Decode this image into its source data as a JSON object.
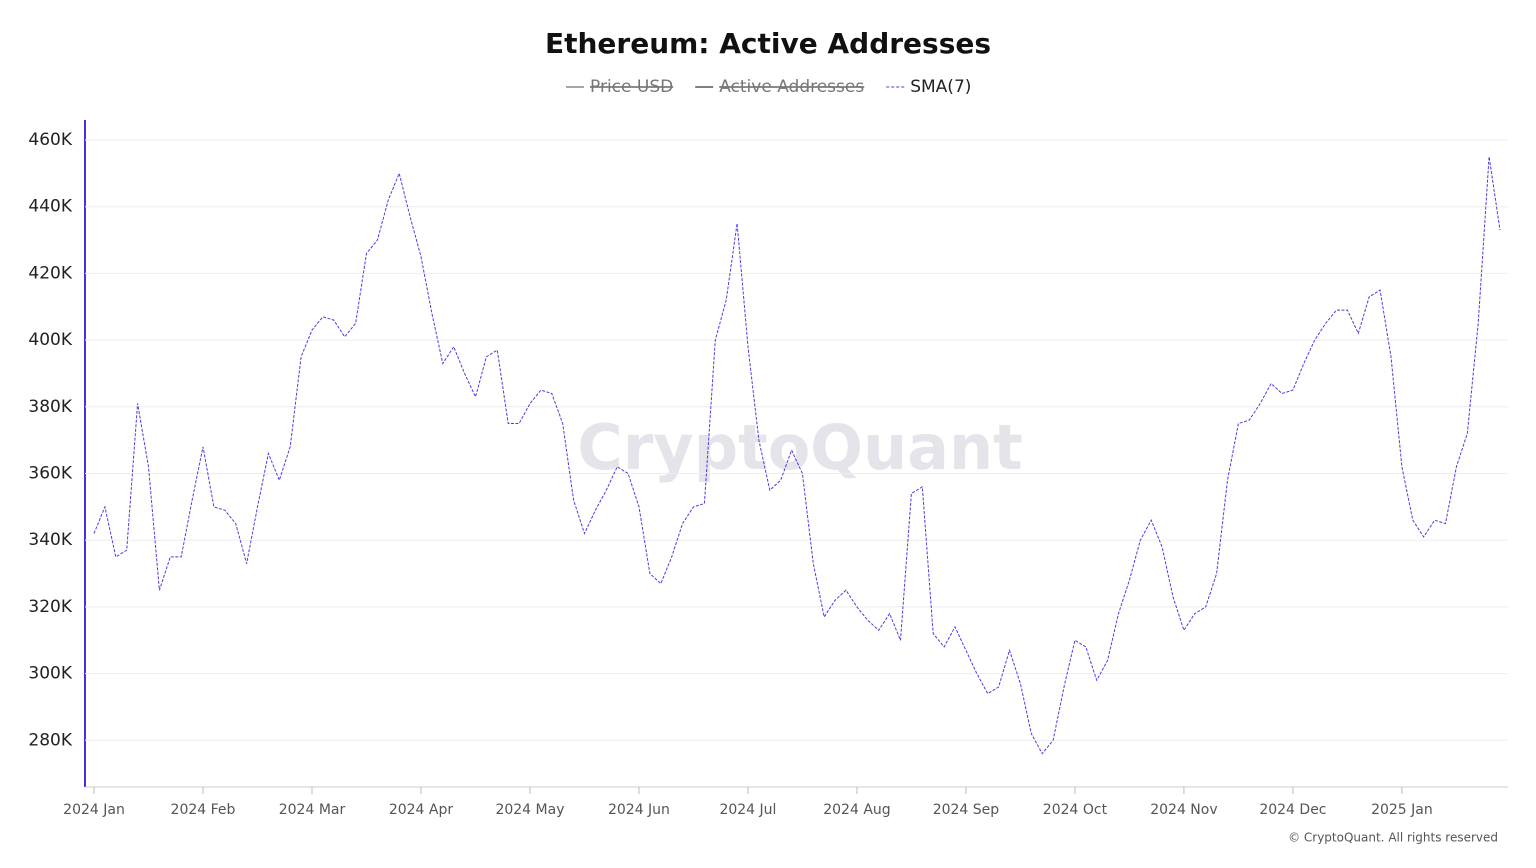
{
  "chart_data": {
    "type": "line",
    "title": "Ethereum: Active Addresses",
    "watermark": "CryptoQuant",
    "credit": "© CryptoQuant. All rights reserved",
    "legend": [
      {
        "name": "Price USD",
        "color": "#888888",
        "hidden": true,
        "style": "solid"
      },
      {
        "name": "Active Addresses",
        "color": "#555555",
        "hidden": true,
        "style": "solid"
      },
      {
        "name": "SMA(7)",
        "color": "#4b3ee0",
        "hidden": false,
        "style": "dashed"
      }
    ],
    "categories": [
      "2024 Jan",
      null,
      null,
      null,
      null,
      null,
      null,
      null,
      null,
      null,
      "2024 Feb",
      null,
      null,
      null,
      null,
      null,
      null,
      null,
      null,
      null,
      "2024 Mar",
      null,
      null,
      null,
      null,
      null,
      null,
      null,
      null,
      null,
      "2024 Apr",
      null,
      null,
      null,
      null,
      null,
      null,
      null,
      null,
      null,
      "2024 May",
      null,
      null,
      null,
      null,
      null,
      null,
      null,
      null,
      null,
      "2024 Jun",
      null,
      null,
      null,
      null,
      null,
      null,
      null,
      null,
      null,
      "2024 Jul",
      null,
      null,
      null,
      null,
      null,
      null,
      null,
      null,
      null,
      "2024 Aug",
      null,
      null,
      null,
      null,
      null,
      null,
      null,
      null,
      null,
      "2024 Sep",
      null,
      null,
      null,
      null,
      null,
      null,
      null,
      null,
      null,
      "2024 Oct",
      null,
      null,
      null,
      null,
      null,
      null,
      null,
      null,
      null,
      "2024 Nov",
      null,
      null,
      null,
      null,
      null,
      null,
      null,
      null,
      null,
      "2024 Dec",
      null,
      null,
      null,
      null,
      null,
      null,
      null,
      null,
      null,
      "2025 Jan",
      null,
      null,
      null,
      null,
      null,
      null,
      null,
      null,
      null
    ],
    "series": [
      {
        "name": "SMA(7)",
        "color": "#4b3ee0",
        "values": [
          342000,
          350000,
          335000,
          337000,
          381000,
          362000,
          325000,
          335000,
          335000,
          352000,
          368000,
          350000,
          349000,
          345000,
          333000,
          350000,
          366000,
          358000,
          368000,
          395000,
          403000,
          407000,
          406000,
          401000,
          405000,
          426000,
          430000,
          442000,
          450000,
          437000,
          425000,
          408000,
          393000,
          398000,
          390000,
          383000,
          395000,
          397000,
          375000,
          375000,
          381000,
          385000,
          384000,
          375000,
          352000,
          342000,
          349000,
          355000,
          362000,
          360000,
          350000,
          330000,
          327000,
          335000,
          345000,
          350000,
          351000,
          400000,
          412000,
          435000,
          398000,
          370000,
          355000,
          358000,
          367000,
          360000,
          333000,
          317000,
          322000,
          325000,
          320000,
          316000,
          313000,
          318000,
          310000,
          354000,
          356000,
          312000,
          308000,
          314000,
          307000,
          300000,
          294000,
          296000,
          307000,
          297000,
          282000,
          276000,
          280000,
          296000,
          310000,
          308000,
          298000,
          304000,
          318000,
          328000,
          340000,
          346000,
          338000,
          323000,
          313000,
          318000,
          320000,
          330000,
          358000,
          375000,
          376000,
          381000,
          387000,
          384000,
          385000,
          393000,
          400000,
          405000,
          409000,
          409000,
          402000,
          413000,
          415000,
          395000,
          362000,
          346000,
          341000,
          346000,
          345000,
          362000,
          372000,
          405000,
          455000,
          433000
        ]
      }
    ],
    "ylim": [
      266000,
      466000
    ],
    "yticks": [
      {
        "value": 280000,
        "label": "280K"
      },
      {
        "value": 300000,
        "label": "300K"
      },
      {
        "value": 320000,
        "label": "320K"
      },
      {
        "value": 340000,
        "label": "340K"
      },
      {
        "value": 360000,
        "label": "360K"
      },
      {
        "value": 380000,
        "label": "380K"
      },
      {
        "value": 400000,
        "label": "400K"
      },
      {
        "value": 420000,
        "label": "420K"
      },
      {
        "value": 440000,
        "label": "440K"
      },
      {
        "value": 460000,
        "label": "460K"
      }
    ],
    "grid": true
  }
}
